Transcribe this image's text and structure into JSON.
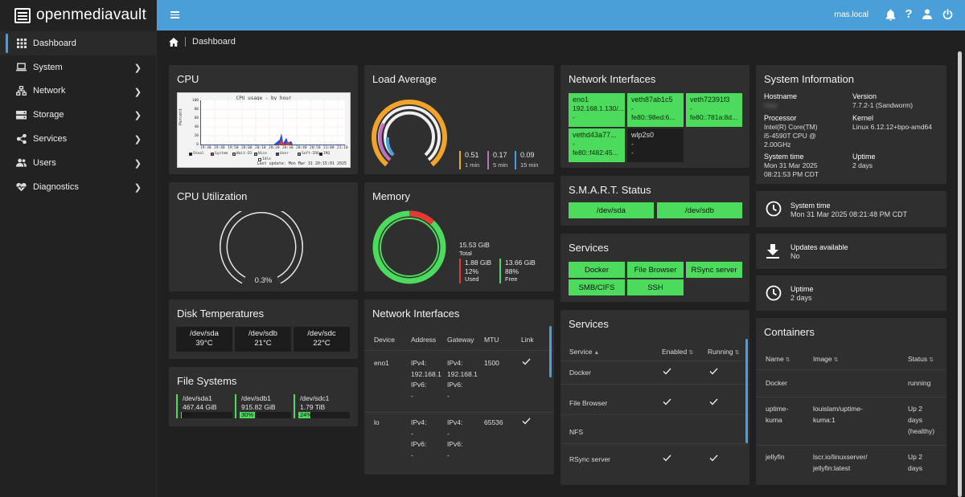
{
  "app": {
    "title": "openmediavault",
    "hostname": "rnas.local"
  },
  "sidebar": {
    "items": [
      {
        "label": "Dashboard",
        "icon": "grid-icon",
        "active": true
      },
      {
        "label": "System",
        "icon": "laptop-icon"
      },
      {
        "label": "Network",
        "icon": "network-icon"
      },
      {
        "label": "Storage",
        "icon": "storage-icon"
      },
      {
        "label": "Services",
        "icon": "share-icon"
      },
      {
        "label": "Users",
        "icon": "users-icon"
      },
      {
        "label": "Diagnostics",
        "icon": "heartbeat-icon"
      }
    ]
  },
  "breadcrumb": {
    "current": "Dashboard"
  },
  "cpu": {
    "title": "CPU",
    "graph_title": "CPU usage - by hour",
    "y_label": "Percent",
    "y_ticks": [
      "100",
      "80",
      "60",
      "40",
      "20",
      "0"
    ],
    "x_ticks": [
      "19:30",
      "19:40",
      "19:50",
      "20:00",
      "20:10",
      "20:20",
      "20:30",
      "20:40",
      "20:50",
      "21:00",
      "21:10"
    ],
    "legend": [
      "Steal",
      "System",
      "Wait-IO",
      "Nice",
      "User",
      "Soft-IRQ",
      "IRQ",
      "Idle"
    ],
    "last_update": "Last update: Mon Mar 31 20:15:01 2025"
  },
  "cpu_util": {
    "title": "CPU Utilization",
    "value": "0.3%",
    "fraction": 0.003
  },
  "load": {
    "title": "Load Average",
    "items": [
      {
        "value": "0.51",
        "label": "1 min",
        "color": "#f2a42a"
      },
      {
        "value": "0.17",
        "label": "5 min",
        "color": "#c26fc0"
      },
      {
        "value": "0.09",
        "label": "15 min",
        "color": "#4a9fd8"
      }
    ]
  },
  "memory": {
    "title": "Memory",
    "total_value": "15.53 GiB",
    "total_label": "Total",
    "used_value": "1.88 GiB",
    "used_pct": "12%",
    "used_label": "Used",
    "free_value": "13.66 GiB",
    "free_pct": "88%",
    "free_label": "Free",
    "used_fraction": 0.12
  },
  "disk_temps": {
    "title": "Disk Temperatures",
    "items": [
      {
        "dev": "/dev/sda",
        "temp": "39°C"
      },
      {
        "dev": "/dev/sdb",
        "temp": "21°C"
      },
      {
        "dev": "/dev/sdc",
        "temp": "22°C"
      }
    ]
  },
  "filesystems": {
    "title": "File Systems",
    "items": [
      {
        "dev": "/dev/sda1",
        "size": "467.44 GiB",
        "pct": "2%",
        "fraction": 0.02
      },
      {
        "dev": "/dev/sdb1",
        "size": "915.82 GiB",
        "pct": "30%",
        "fraction": 0.3
      },
      {
        "dev": "/dev/sdc1",
        "size": "1.79 TiB",
        "pct": "24%",
        "fraction": 0.24
      }
    ]
  },
  "net_table": {
    "title": "Network Interfaces",
    "headers": [
      "Device",
      "Address",
      "Gateway",
      "MTU",
      "Link"
    ],
    "rows": [
      {
        "device": "eno1",
        "addr": [
          "IPv4:",
          "192.168.1",
          "IPv6:",
          "-"
        ],
        "gw": [
          "IPv4:",
          "192.168.1",
          "IPv6:",
          "-"
        ],
        "mtu": "1500"
      },
      {
        "device": "lo",
        "addr": [
          "IPv4:",
          "-",
          "IPv6:",
          "-"
        ],
        "gw": [
          "IPv4:",
          "-",
          "IPv6:",
          "-"
        ],
        "mtu": "65536"
      }
    ]
  },
  "net_tiles": {
    "title": "Network Interfaces",
    "items": [
      {
        "name": "eno1",
        "l1": "192.168.1.130/...",
        "l2": "-",
        "l3": "",
        "up": true
      },
      {
        "name": "veth87ab1c5",
        "l1": "-",
        "l2": "fe80::98ed:6...",
        "l3": "",
        "up": true
      },
      {
        "name": "veth72391f3",
        "l1": "-",
        "l2": "fe80::781a:8d...",
        "l3": "",
        "up": true
      },
      {
        "name": "vethd43a77...",
        "l1": "-",
        "l2": "fe80::f482:45...",
        "l3": "",
        "up": true
      },
      {
        "name": "wlp2s0",
        "l1": "-",
        "l2": "-",
        "l3": "",
        "up": false
      }
    ]
  },
  "smart": {
    "title": "S.M.A.R.T. Status",
    "items": [
      "/dev/sda",
      "/dev/sdb"
    ]
  },
  "services_chips": {
    "title": "Services",
    "items": [
      "Docker",
      "File Browser",
      "RSync server",
      "SMB/CIFS",
      "SSH"
    ]
  },
  "services_table": {
    "title": "Services",
    "headers": [
      "Service",
      "Enabled",
      "Running"
    ],
    "rows": [
      {
        "name": "Docker",
        "enabled": true,
        "running": true
      },
      {
        "name": "File Browser",
        "enabled": true,
        "running": true
      },
      {
        "name": "NFS",
        "enabled": false,
        "running": false
      },
      {
        "name": "RSync server",
        "enabled": true,
        "running": true
      }
    ]
  },
  "sysinfo": {
    "title": "System Information",
    "hostname_label": "Hostname",
    "hostname_value": "rnas",
    "version_label": "Version",
    "version_value": "7.7.2-1 (Sandworm)",
    "processor_label": "Processor",
    "processor_value": [
      "Intel(R) Core(TM)",
      "i5-4590T CPU @",
      "2.00GHz"
    ],
    "kernel_label": "Kernel",
    "kernel_value": "Linux 6.12.12+bpo-amd64",
    "systime_label": "System time",
    "systime_value": [
      "Mon 31 Mar 2025",
      "08:21:53 PM CDT"
    ],
    "uptime_label": "Uptime",
    "uptime_value": "2 days"
  },
  "widgets": {
    "systime": {
      "title": "System time",
      "value": "Mon 31 Mar 2025 08:21:48 PM CDT"
    },
    "updates": {
      "title": "Updates available",
      "value": "No"
    },
    "uptime": {
      "title": "Uptime",
      "value": "2 days"
    }
  },
  "containers": {
    "title": "Containers",
    "headers": [
      "Name",
      "Image",
      "Status"
    ],
    "rows": [
      {
        "name": [
          "Docker"
        ],
        "image": [
          ""
        ],
        "status": [
          "running"
        ]
      },
      {
        "name": [
          "uptime-",
          "kuma"
        ],
        "image": [
          "louislam/uptime-",
          "kuma:1"
        ],
        "status": [
          "Up 2",
          "days",
          "(healthy)"
        ]
      },
      {
        "name": [
          "jellyfin"
        ],
        "image": [
          "lscr.io/linuxserver/",
          "jellyfin:latest"
        ],
        "status": [
          "Up 2",
          "days"
        ]
      }
    ]
  },
  "colors": {
    "accent": "#4a9fd8",
    "ok_green": "#4cdb5c",
    "used_red": "#e53935"
  }
}
